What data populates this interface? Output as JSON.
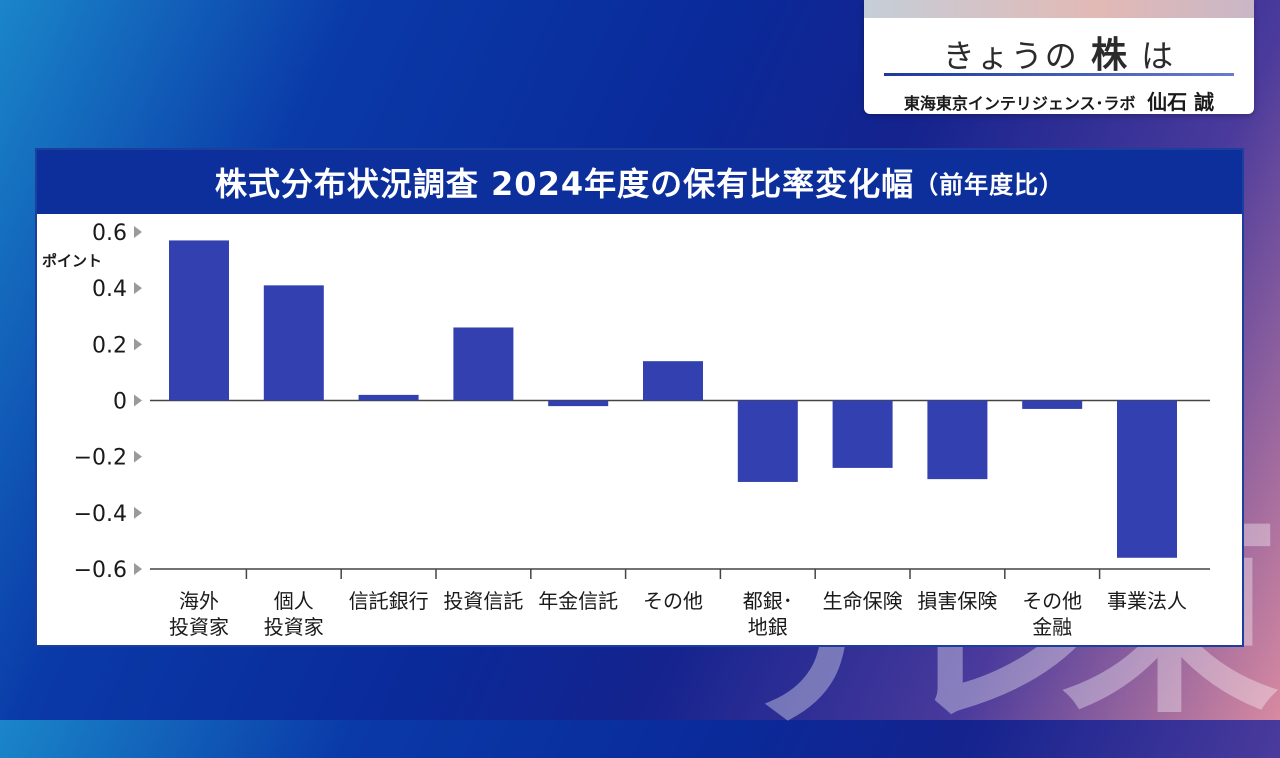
{
  "corner": {
    "title_prefix": "きょうの",
    "title_strong": "株",
    "title_suffix": "は",
    "presenter_org": "東海東京インテリジェンス･ラボ",
    "presenter_name": "仙石 誠"
  },
  "background_glyphs": [
    "テ",
    "レ",
    "東"
  ],
  "colors": {
    "bar": "#3240b0",
    "title_bg": "#0c2f9c",
    "axis": "#444444"
  },
  "chart_data": {
    "type": "bar",
    "title": "株式分布状況調査 2024年度の保有比率変化幅",
    "subtitle": "（前年度比）",
    "ylabel": "ポイント",
    "ylim": [
      -0.6,
      0.6
    ],
    "yticks": [
      "0.6",
      "0.4",
      "0.2",
      "0",
      "−0.2",
      "−0.4",
      "−0.6"
    ],
    "ytick_values": [
      0.6,
      0.4,
      0.2,
      0,
      -0.2,
      -0.4,
      -0.6
    ],
    "categories": [
      [
        "海外",
        "投資家"
      ],
      [
        "個人",
        "投資家"
      ],
      [
        "信託銀行"
      ],
      [
        "投資信託"
      ],
      [
        "年金信託"
      ],
      [
        "その他"
      ],
      [
        "都銀･",
        "地銀"
      ],
      [
        "生命保険"
      ],
      [
        "損害保険"
      ],
      [
        "その他",
        "金融"
      ],
      [
        "事業法人"
      ]
    ],
    "values": [
      0.57,
      0.41,
      0.02,
      0.26,
      -0.02,
      0.14,
      -0.29,
      -0.24,
      -0.28,
      -0.03,
      -0.56
    ]
  }
}
